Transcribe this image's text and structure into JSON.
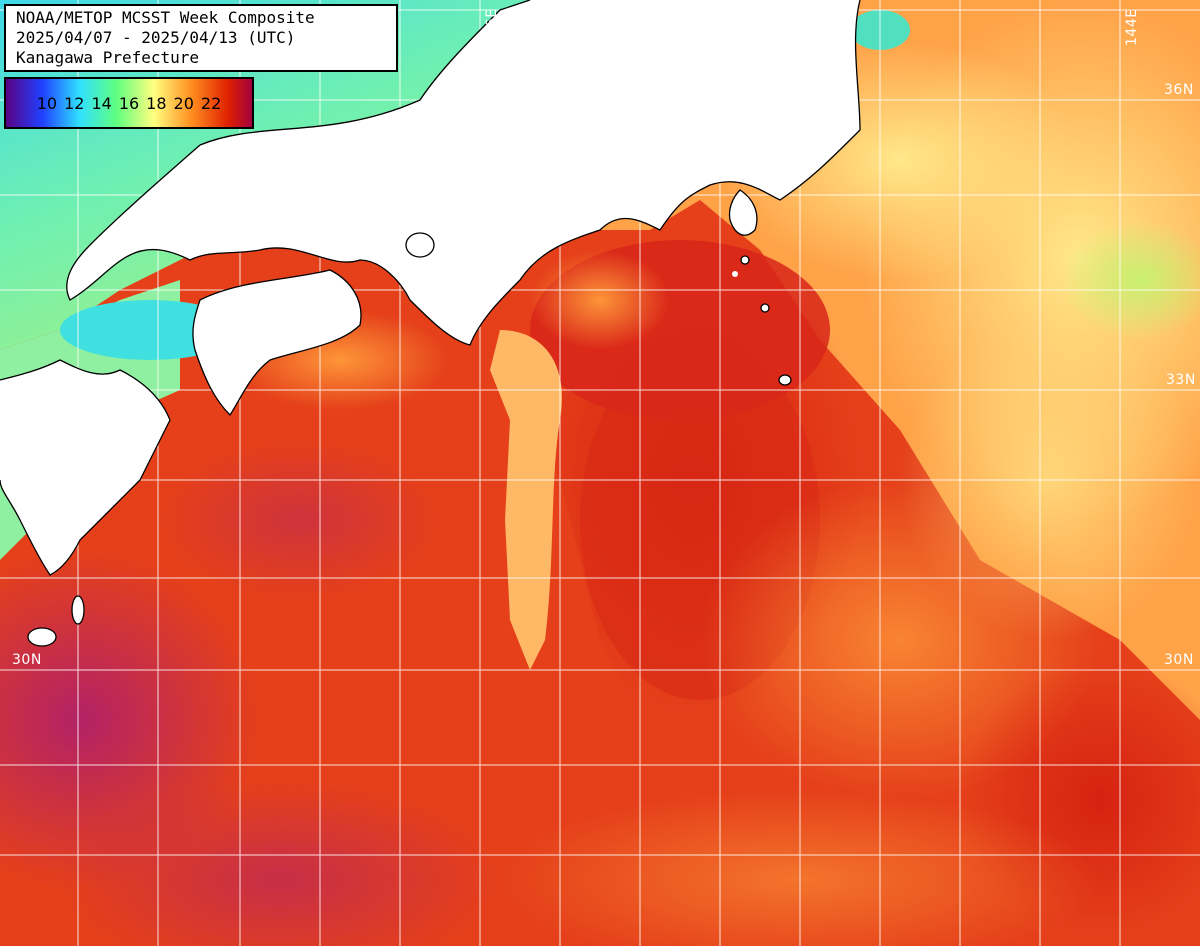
{
  "title": {
    "line1": "NOAA/METOP MCSST Week Composite",
    "line2": "2025/04/07 - 2025/04/13 (UTC)",
    "line3": "Kanagawa Prefecture"
  },
  "legend": {
    "ticks": [
      "10",
      "12",
      "14",
      "16",
      "18",
      "20",
      "22"
    ],
    "gradient_colors": [
      "#5a0080",
      "#2040ff",
      "#30e0ff",
      "#60ff80",
      "#ffff80",
      "#ff9020",
      "#e02000",
      "#a00040"
    ]
  },
  "labels": {
    "lon_136": "136E",
    "lon_144": "144E",
    "lat_36_right": "36N",
    "lat_33_right": "33N",
    "lat_30_left": "30N",
    "lat_30_right": "30N"
  },
  "colors": {
    "land": "#ffffff",
    "warm_sea": "#e8441a",
    "hot_sea": "#d41f10",
    "mild_sea": "#ff9a3a",
    "cool_sea": "#ffd878",
    "cold_sea": "#50e0e0",
    "grid": "#ffffff"
  }
}
